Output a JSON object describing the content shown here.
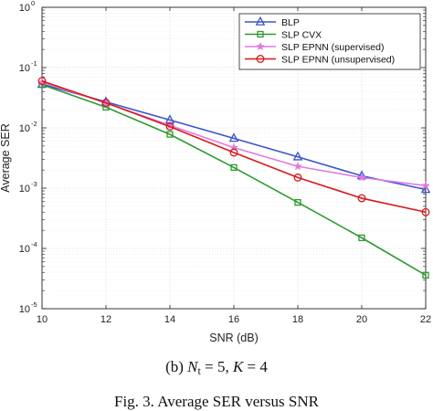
{
  "chart_data": {
    "type": "line",
    "xlabel": "SNR (dB)",
    "ylabel": "Average SER",
    "x": [
      10,
      12,
      14,
      16,
      18,
      20,
      22
    ],
    "xlim": [
      10,
      22
    ],
    "ylim": [
      1e-05,
      1
    ],
    "yscale": "log",
    "grid": true,
    "legend_position": "top-right",
    "x_tick_labels": [
      "10",
      "12",
      "14",
      "16",
      "18",
      "20",
      "22"
    ],
    "y_ticks": [
      {
        "value": 1e-05,
        "base": "10",
        "exp": "-5"
      },
      {
        "value": 0.0001,
        "base": "10",
        "exp": "-4"
      },
      {
        "value": 0.001,
        "base": "10",
        "exp": "-3"
      },
      {
        "value": 0.01,
        "base": "10",
        "exp": "-2"
      },
      {
        "value": 0.1,
        "base": "10",
        "exp": "-1"
      },
      {
        "value": 1,
        "base": "10",
        "exp": "0"
      }
    ],
    "series": [
      {
        "name": "BLP",
        "color": "#3b55c9",
        "marker": "triangle",
        "values": [
          0.053,
          0.027,
          0.0135,
          0.0067,
          0.0033,
          0.0016,
          0.00095
        ]
      },
      {
        "name": "SLP CVX",
        "color": "#2e9a2e",
        "marker": "square",
        "values": [
          0.052,
          0.022,
          0.0078,
          0.0022,
          0.00058,
          0.00015,
          3.6e-05
        ]
      },
      {
        "name": "SLP EPNN (supervised)",
        "color": "#e07ae0",
        "marker": "star",
        "values": [
          0.057,
          0.026,
          0.011,
          0.0047,
          0.0023,
          0.0015,
          0.0011
        ]
      },
      {
        "name": "SLP EPNN (unsupervised)",
        "color": "#d7191c",
        "marker": "circle",
        "values": [
          0.06,
          0.026,
          0.0105,
          0.0039,
          0.0015,
          0.00068,
          0.0004
        ]
      }
    ]
  },
  "caption": {
    "prefix": "(b) ",
    "n_symbol": "N",
    "n_subscript": "t",
    "n_value": " = 5, ",
    "k_symbol": "K",
    "k_value": " = 4"
  },
  "cut_caption": "Fig. 3. Average SER versus SNR"
}
